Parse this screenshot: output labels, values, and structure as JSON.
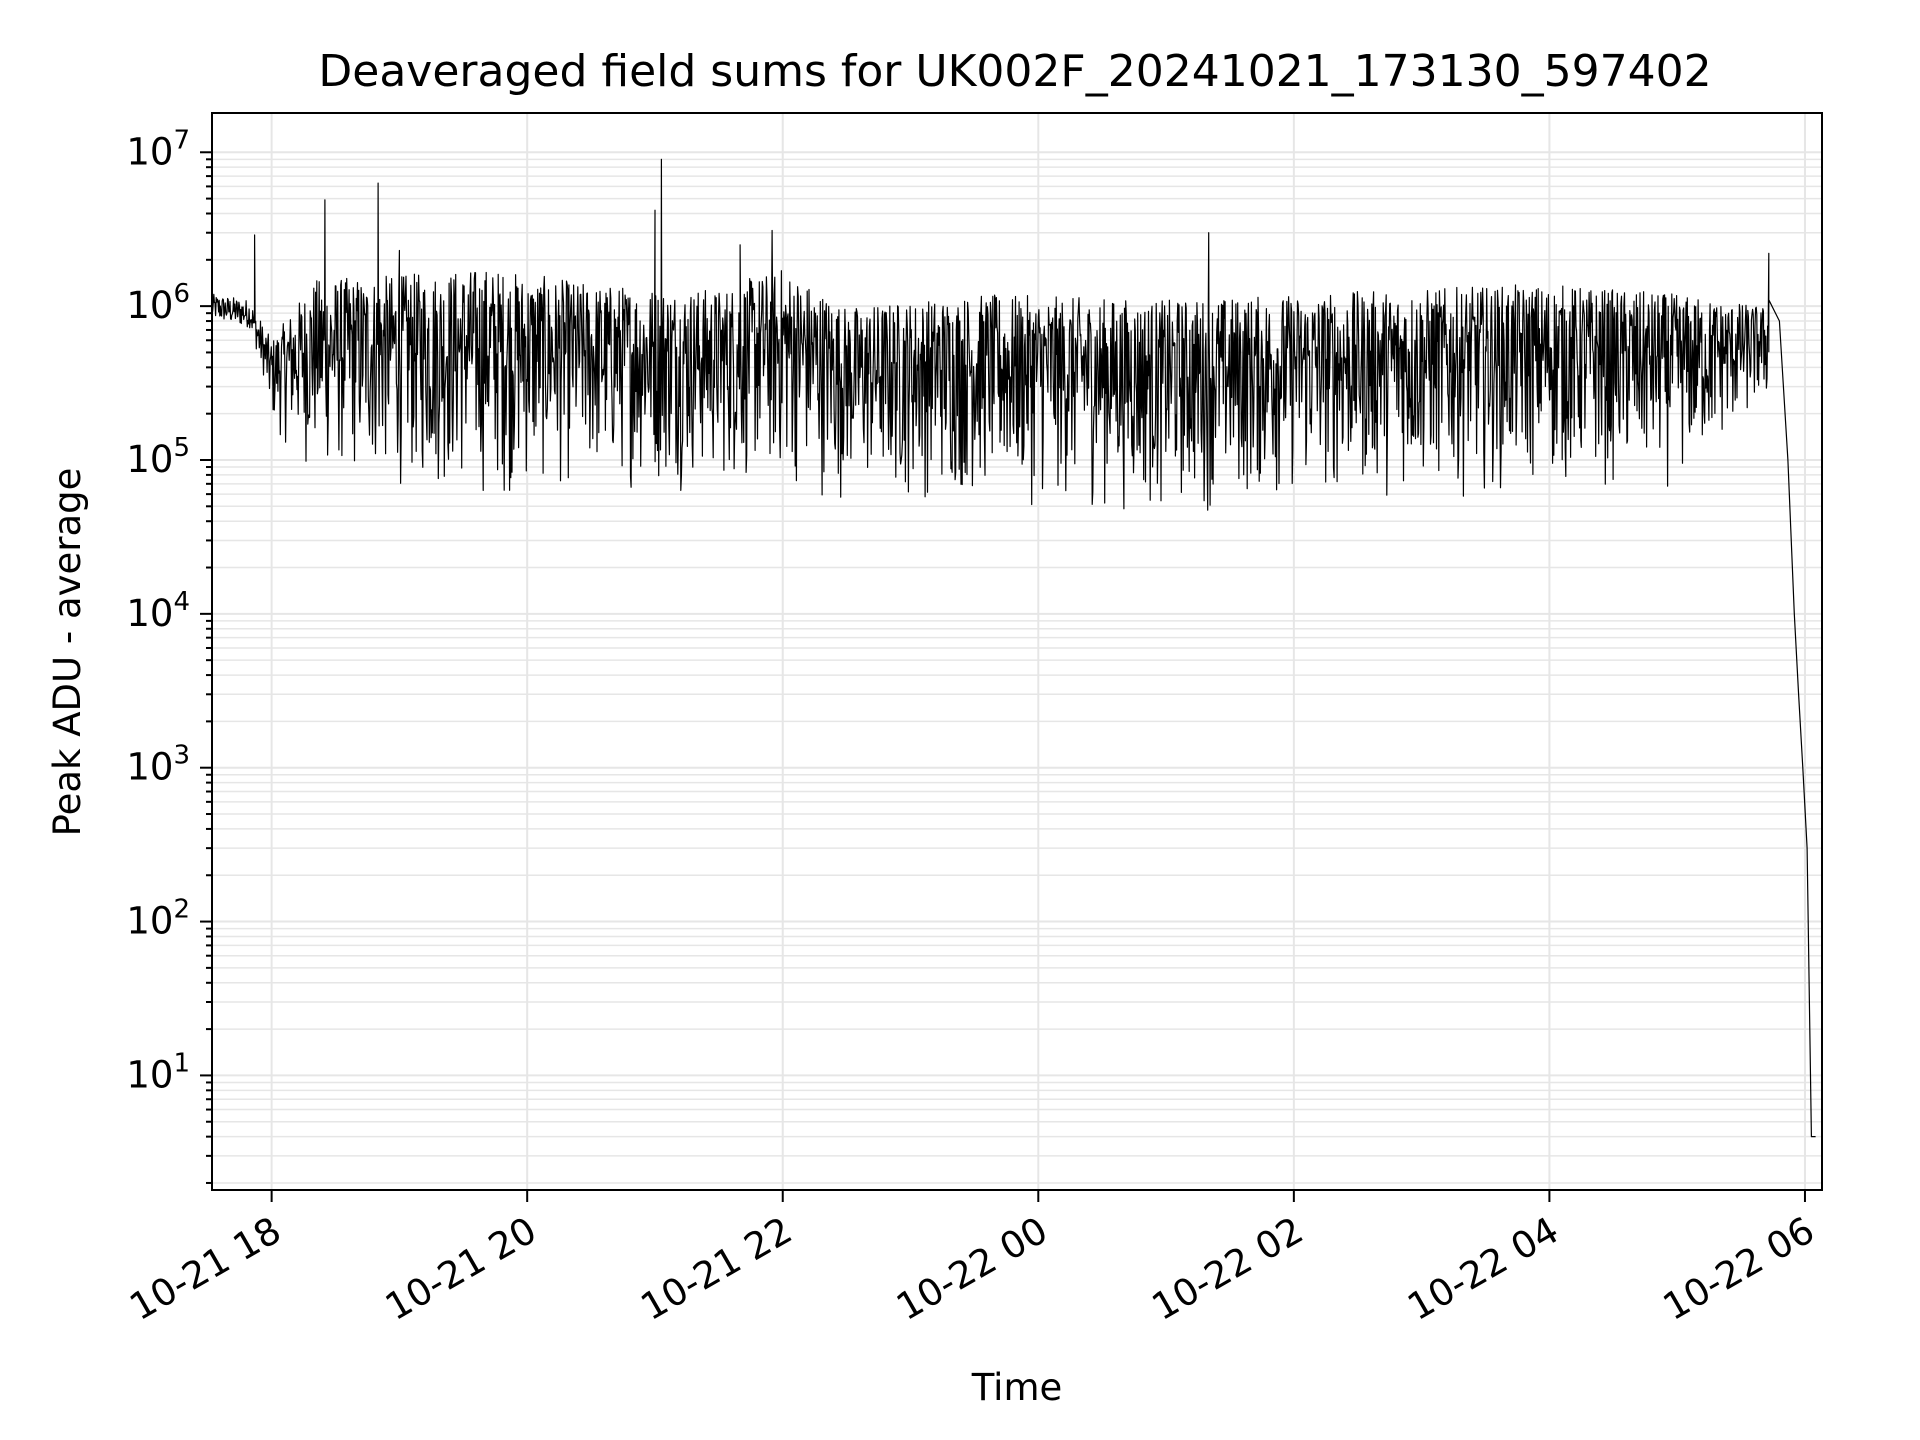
{
  "chart_data": {
    "type": "line",
    "title": "Deaveraged field sums for UK002F_20241021_173130_597402",
    "xlabel": "Time",
    "ylabel": "Peak ADU - average",
    "yscale": "log",
    "ylim": [
      1.8,
      18000000
    ],
    "xlim": [
      "2024-10-21 17:32",
      "2024-10-22 06:08"
    ],
    "grid": true,
    "line_color": "#000000",
    "x_ticks": [
      {
        "time": "2024-10-21 18:00",
        "label": "10-21 18"
      },
      {
        "time": "2024-10-21 20:00",
        "label": "10-21 20"
      },
      {
        "time": "2024-10-21 22:00",
        "label": "10-21 22"
      },
      {
        "time": "2024-10-22 00:00",
        "label": "10-22 00"
      },
      {
        "time": "2024-10-22 02:00",
        "label": "10-22 02"
      },
      {
        "time": "2024-10-22 04:00",
        "label": "10-22 04"
      },
      {
        "time": "2024-10-22 06:00",
        "label": "10-22 06"
      }
    ],
    "y_ticks": [
      {
        "value": 10,
        "base": "10",
        "exp": "1"
      },
      {
        "value": 100,
        "base": "10",
        "exp": "2"
      },
      {
        "value": 1000,
        "base": "10",
        "exp": "3"
      },
      {
        "value": 10000,
        "base": "10",
        "exp": "4"
      },
      {
        "value": 100000,
        "base": "10",
        "exp": "5"
      },
      {
        "value": 1000000,
        "base": "10",
        "exp": "6"
      },
      {
        "value": 10000000,
        "base": "10",
        "exp": "7"
      }
    ],
    "series": [
      {
        "name": "",
        "envelope": [
          {
            "time": "2024-10-21 17:32",
            "low": 700000,
            "high": 1200000
          },
          {
            "time": "2024-10-21 17:50",
            "low": 600000,
            "high": 1100000
          },
          {
            "time": "2024-10-21 18:00",
            "low": 150000,
            "high": 600000
          },
          {
            "time": "2024-10-21 18:20",
            "low": 70000,
            "high": 1500000
          },
          {
            "time": "2024-10-21 19:00",
            "low": 60000,
            "high": 1600000
          },
          {
            "time": "2024-10-21 19:40",
            "low": 50000,
            "high": 1800000
          },
          {
            "time": "2024-10-21 20:30",
            "low": 60000,
            "high": 1400000
          },
          {
            "time": "2024-10-21 21:30",
            "low": 60000,
            "high": 1300000
          },
          {
            "time": "2024-10-21 22:00",
            "low": 60000,
            "high": 1800000
          },
          {
            "time": "2024-10-21 22:30",
            "low": 50000,
            "high": 1000000
          },
          {
            "time": "2024-10-21 23:30",
            "low": 50000,
            "high": 1200000
          },
          {
            "time": "2024-10-22 01:00",
            "low": 40000,
            "high": 1100000
          },
          {
            "time": "2024-10-22 02:00",
            "low": 50000,
            "high": 1200000
          },
          {
            "time": "2024-10-22 03:00",
            "low": 55000,
            "high": 1300000
          },
          {
            "time": "2024-10-22 04:00",
            "low": 60000,
            "high": 1400000
          },
          {
            "time": "2024-10-22 05:00",
            "low": 60000,
            "high": 1200000
          },
          {
            "time": "2024-10-22 05:40",
            "low": 200000,
            "high": 1000000
          }
        ],
        "spikes": [
          {
            "time": "2024-10-21 17:52",
            "value": 2900000
          },
          {
            "time": "2024-10-21 18:25",
            "value": 4900000
          },
          {
            "time": "2024-10-21 18:50",
            "value": 6300000
          },
          {
            "time": "2024-10-21 19:00",
            "value": 2300000
          },
          {
            "time": "2024-10-21 21:00",
            "value": 4200000
          },
          {
            "time": "2024-10-21 21:03",
            "value": 9000000
          },
          {
            "time": "2024-10-21 21:40",
            "value": 2500000
          },
          {
            "time": "2024-10-21 21:55",
            "value": 3100000
          },
          {
            "time": "2024-10-22 01:20",
            "value": 3000000
          },
          {
            "time": "2024-10-22 05:43",
            "value": 2200000
          }
        ],
        "tail": [
          {
            "time": "2024-10-22 05:43",
            "value": 1100000
          },
          {
            "time": "2024-10-22 05:48",
            "value": 800000
          },
          {
            "time": "2024-10-22 05:52",
            "value": 100000
          },
          {
            "time": "2024-10-22 05:55",
            "value": 10000
          },
          {
            "time": "2024-10-22 05:57",
            "value": 3000
          },
          {
            "time": "2024-10-22 05:59",
            "value": 1000
          },
          {
            "time": "2024-10-22 06:01",
            "value": 300
          },
          {
            "time": "2024-10-22 06:03",
            "value": 4
          },
          {
            "time": "2024-10-22 06:05",
            "value": 4
          }
        ]
      }
    ]
  }
}
